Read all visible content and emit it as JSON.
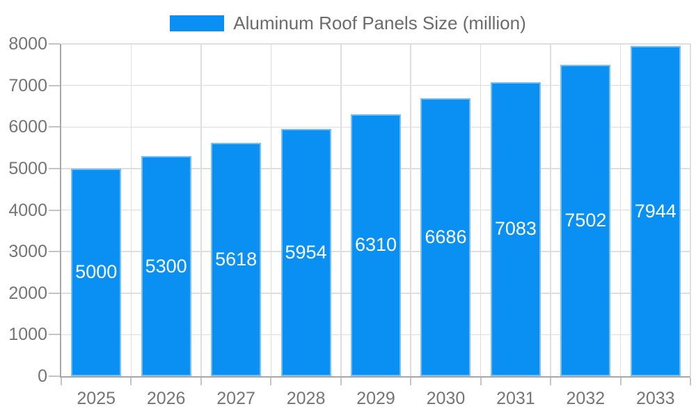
{
  "chart_data": {
    "type": "bar",
    "title": "Aluminum Roof Panels Size (million)",
    "legend": {
      "label": "Aluminum Roof Panels Size (million)",
      "position": "top"
    },
    "categories": [
      "2025",
      "2026",
      "2027",
      "2028",
      "2029",
      "2030",
      "2031",
      "2032",
      "2033"
    ],
    "values": [
      5000,
      5300,
      5618,
      5954,
      6310,
      6686,
      7083,
      7502,
      7944
    ],
    "xlabel": "",
    "ylabel": "",
    "ylim": [
      0,
      8000
    ],
    "yticks": [
      0,
      1000,
      2000,
      3000,
      4000,
      5000,
      6000,
      7000,
      8000
    ],
    "grid": true,
    "value_label_position": "inside-center",
    "colors": {
      "bar": "#0a90f2",
      "bar_edge": "#79bef4",
      "grid": "#dedede",
      "axis": "#a8a8a8",
      "tick": "#c4c4c4",
      "axis_text": "#757575",
      "legend_text": "#6b6b6b",
      "value_text": "#ffffff",
      "background": "#ffffff"
    }
  }
}
